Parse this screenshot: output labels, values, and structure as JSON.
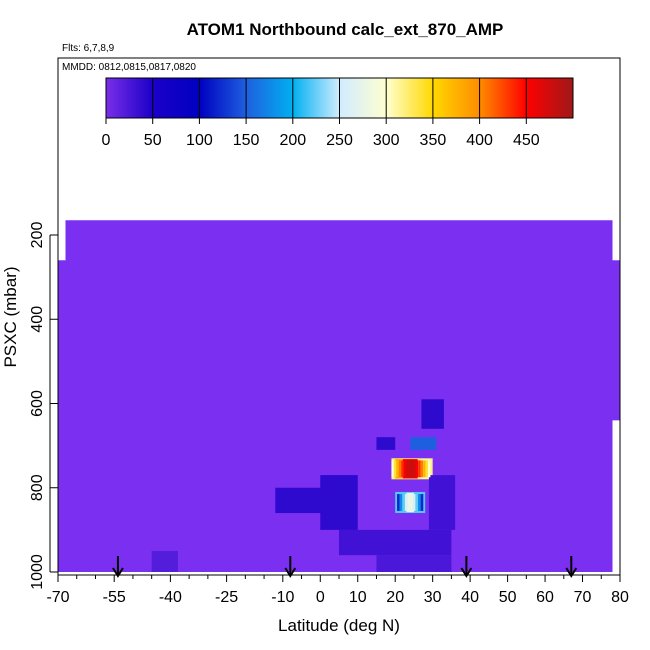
{
  "chart_data": {
    "type": "heatmap",
    "title": "ATOM1 Northbound calc_ext_870_AMP",
    "flights_note": "Flts: 6,7,8,9",
    "dates_note": "MMDD: 0812,0815,0817,0820",
    "xlabel": "Latitude (deg N)",
    "ylabel": "PSXC (mbar)",
    "xlim": [
      -70,
      80
    ],
    "ylim": [
      1000,
      150
    ],
    "x_ticks": [
      -70,
      -55,
      -40,
      -25,
      -10,
      0,
      10,
      20,
      30,
      40,
      50,
      60,
      70,
      80
    ],
    "x_tick_labels": [
      "-70",
      "-55",
      "-40",
      "-25",
      "-10",
      "0",
      "10",
      "20",
      "30",
      "40",
      "50",
      "60",
      "70",
      "80"
    ],
    "y_ticks": [
      200,
      400,
      600,
      800,
      1000
    ],
    "y_tick_labels": [
      "200",
      "400",
      "600",
      "800",
      "1000"
    ],
    "colorbar": {
      "range": [
        0,
        500
      ],
      "tick_labels": [
        "0",
        "50",
        "100",
        "150",
        "200",
        "250",
        "300",
        "350",
        "400",
        "450"
      ],
      "colors": [
        "#7a2ee8",
        "#1b00c8",
        "#0000c0",
        "#1e5fe0",
        "#00b0f0",
        "#d0ecff",
        "#ffffd0",
        "#ffd800",
        "#ff8c00",
        "#ff0000",
        "#a01818"
      ]
    },
    "background_color": "#7b2ff0",
    "data_lat_range": [
      -68,
      78
    ],
    "data_p_range": [
      165,
      1000
    ],
    "cells": [
      {
        "lat0": 19,
        "lat1": 30,
        "p0": 730,
        "p1": 780,
        "value": 320
      },
      {
        "lat0": 22,
        "lat1": 26,
        "p0": 732,
        "p1": 778,
        "value": 460
      },
      {
        "lat0": 20,
        "lat1": 22,
        "p0": 732,
        "p1": 778,
        "value": 380
      },
      {
        "lat0": 27,
        "lat1": 29,
        "p0": 732,
        "p1": 778,
        "value": 280
      },
      {
        "lat0": 20,
        "lat1": 28,
        "p0": 810,
        "p1": 860,
        "value": 220
      },
      {
        "lat0": 23,
        "lat1": 25,
        "p0": 812,
        "p1": 858,
        "value": 280
      },
      {
        "lat0": 24,
        "lat1": 31,
        "p0": 680,
        "p1": 710,
        "value": 150
      },
      {
        "lat0": 15,
        "lat1": 20,
        "p0": 680,
        "p1": 710,
        "value": 40
      },
      {
        "lat0": 5,
        "lat1": 35,
        "p0": 900,
        "p1": 960,
        "value": 30
      },
      {
        "lat0": 15,
        "lat1": 35,
        "p0": 960,
        "p1": 1000,
        "value": 25
      },
      {
        "lat0": 0,
        "lat1": 10,
        "p0": 770,
        "p1": 900,
        "value": 40
      },
      {
        "lat0": -12,
        "lat1": 3,
        "p0": 800,
        "p1": 860,
        "value": 40
      },
      {
        "lat0": 27,
        "lat1": 33,
        "p0": 590,
        "p1": 660,
        "value": 40
      },
      {
        "lat0": 29,
        "lat1": 36,
        "p0": 770,
        "p1": 900,
        "value": 30
      },
      {
        "lat0": -45,
        "lat1": -38,
        "p0": 950,
        "p1": 1000,
        "value": 20
      }
    ],
    "markers": {
      "type": "arrow",
      "at_bottom_lat": [
        -54,
        -8,
        39,
        67
      ]
    }
  }
}
